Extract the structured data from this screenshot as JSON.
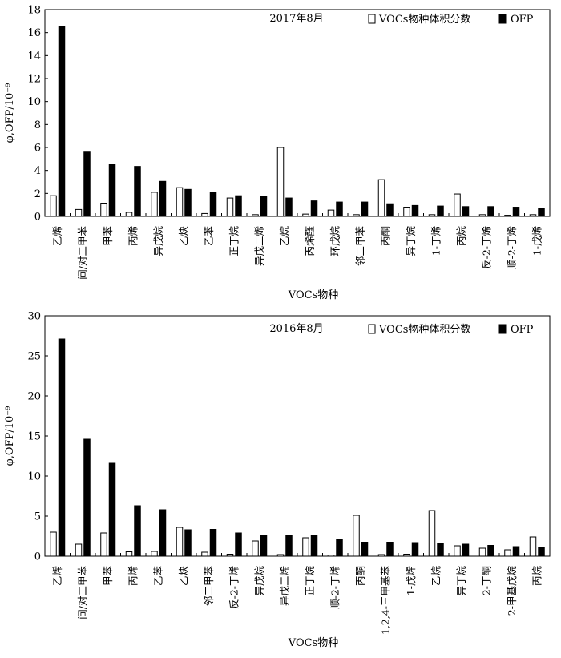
{
  "chart_data": [
    {
      "type": "bar",
      "title": "2017年8月",
      "xlabel": "VOCs物种",
      "ylabel": "φ,OFP/10⁻⁹",
      "ylim": [
        0,
        18
      ],
      "yticks": [
        "0",
        "2",
        "4",
        "6",
        "8",
        "10",
        "12",
        "14",
        "16",
        "18"
      ],
      "legend_position": "top-right",
      "grid": false,
      "categories": [
        "乙烯",
        "间/对二甲苯",
        "甲苯",
        "丙烯",
        "异戊烷",
        "乙炔",
        "乙苯",
        "正丁烷",
        "异戊二烯",
        "乙烷",
        "丙烯醛",
        "环戊烷",
        "邻二甲苯",
        "丙酮",
        "异丁烷",
        "1-丁烯",
        "丙烷",
        "反-2-丁烯",
        "顺-2-丁烯",
        "1-戊烯"
      ],
      "series": [
        {
          "name": "VOCs物种体积分数",
          "values": [
            1.8,
            0.6,
            1.15,
            0.35,
            2.1,
            2.5,
            0.25,
            1.6,
            0.15,
            6.0,
            0.2,
            0.55,
            0.15,
            3.2,
            0.8,
            0.15,
            1.95,
            0.15,
            0.1,
            0.15
          ]
        },
        {
          "name": "OFP",
          "values": [
            16.5,
            5.6,
            4.5,
            4.35,
            3.05,
            2.35,
            2.1,
            1.8,
            1.75,
            1.6,
            1.35,
            1.25,
            1.25,
            1.1,
            0.95,
            0.9,
            0.85,
            0.85,
            0.8,
            0.7
          ]
        }
      ]
    },
    {
      "type": "bar",
      "title": "2016年8月",
      "xlabel": "VOCs物种",
      "ylabel": "φ,OFP/10⁻⁹",
      "ylim": [
        0,
        30
      ],
      "yticks": [
        "0",
        "5",
        "10",
        "15",
        "20",
        "25",
        "30"
      ],
      "legend_position": "top-right",
      "grid": false,
      "categories": [
        "乙烯",
        "间/对二甲苯",
        "甲苯",
        "丙烯",
        "乙苯",
        "乙炔",
        "邻二甲苯",
        "反-2-丁烯",
        "异戊烷",
        "异戊二烯",
        "正丁烷",
        "顺-2-丁烯",
        "丙酮",
        "1,2,4-三甲基苯",
        "1-戊烯",
        "乙烷",
        "异丁烷",
        "2-丁酮",
        "2-甲基戊烷",
        "丙烷"
      ],
      "series": [
        {
          "name": "VOCs物种体积分数",
          "values": [
            3.0,
            1.5,
            2.9,
            0.55,
            0.6,
            3.6,
            0.5,
            0.25,
            1.9,
            0.2,
            2.3,
            0.15,
            5.1,
            0.2,
            0.25,
            5.7,
            1.3,
            1.0,
            0.8,
            2.4
          ]
        },
        {
          "name": "OFP",
          "values": [
            27.1,
            14.6,
            11.6,
            6.3,
            5.8,
            3.3,
            3.35,
            2.9,
            2.6,
            2.6,
            2.55,
            2.1,
            1.75,
            1.75,
            1.7,
            1.6,
            1.5,
            1.35,
            1.2,
            1.05
          ]
        }
      ]
    }
  ]
}
